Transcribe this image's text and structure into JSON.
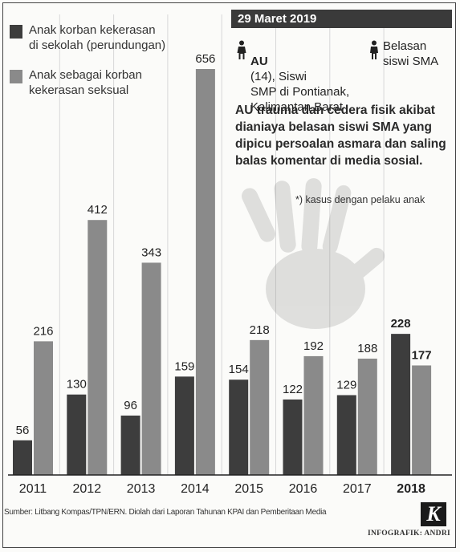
{
  "chart_data": {
    "type": "bar",
    "categories": [
      "2011",
      "2012",
      "2013",
      "2014",
      "2015",
      "2016",
      "2017",
      "2018"
    ],
    "series": [
      {
        "name": "Anak korban kekerasan di sekolah (perundungan)",
        "values": [
          56,
          130,
          96,
          159,
          154,
          122,
          129,
          228
        ],
        "color": "#3d3d3d"
      },
      {
        "name": "Anak sebagai korban kekerasan seksual",
        "values": [
          216,
          412,
          343,
          656,
          218,
          192,
          188,
          177
        ],
        "color": "#8a8a8a"
      }
    ],
    "ylim": [
      0,
      656
    ],
    "grid": true,
    "legend_position": "top-left"
  },
  "legend": {
    "item1": "Anak korban kekerasan\ndi sekolah (perundungan)",
    "item2": "Anak sebagai korban\nkekerasan seksual"
  },
  "panel": {
    "date": "29 Maret 2019",
    "victim_name": "AU",
    "victim_desc": "(14), Siswi\nSMP di Pontianak,\nKalimantan Barat",
    "perpetrator": "Belasan\nsiswi SMA",
    "story": "AU trauma dan cedera fisik akibat dianiaya belasan siswi SMA yang dipicu persoalan asmara dan saling balas komentar di media sosial.",
    "footnote": "*) kasus dengan pelaku anak"
  },
  "source": "Sumber: Litbang Kompas/TPN/ERN. Diolah dari Laporan Tahunan KPAI dan Pemberitaan Media",
  "credit": "INFOGRAFIK: ANDRI",
  "logo": "K",
  "icons": [
    "person-icon",
    "handprint-icon",
    "kompas-logo"
  ]
}
